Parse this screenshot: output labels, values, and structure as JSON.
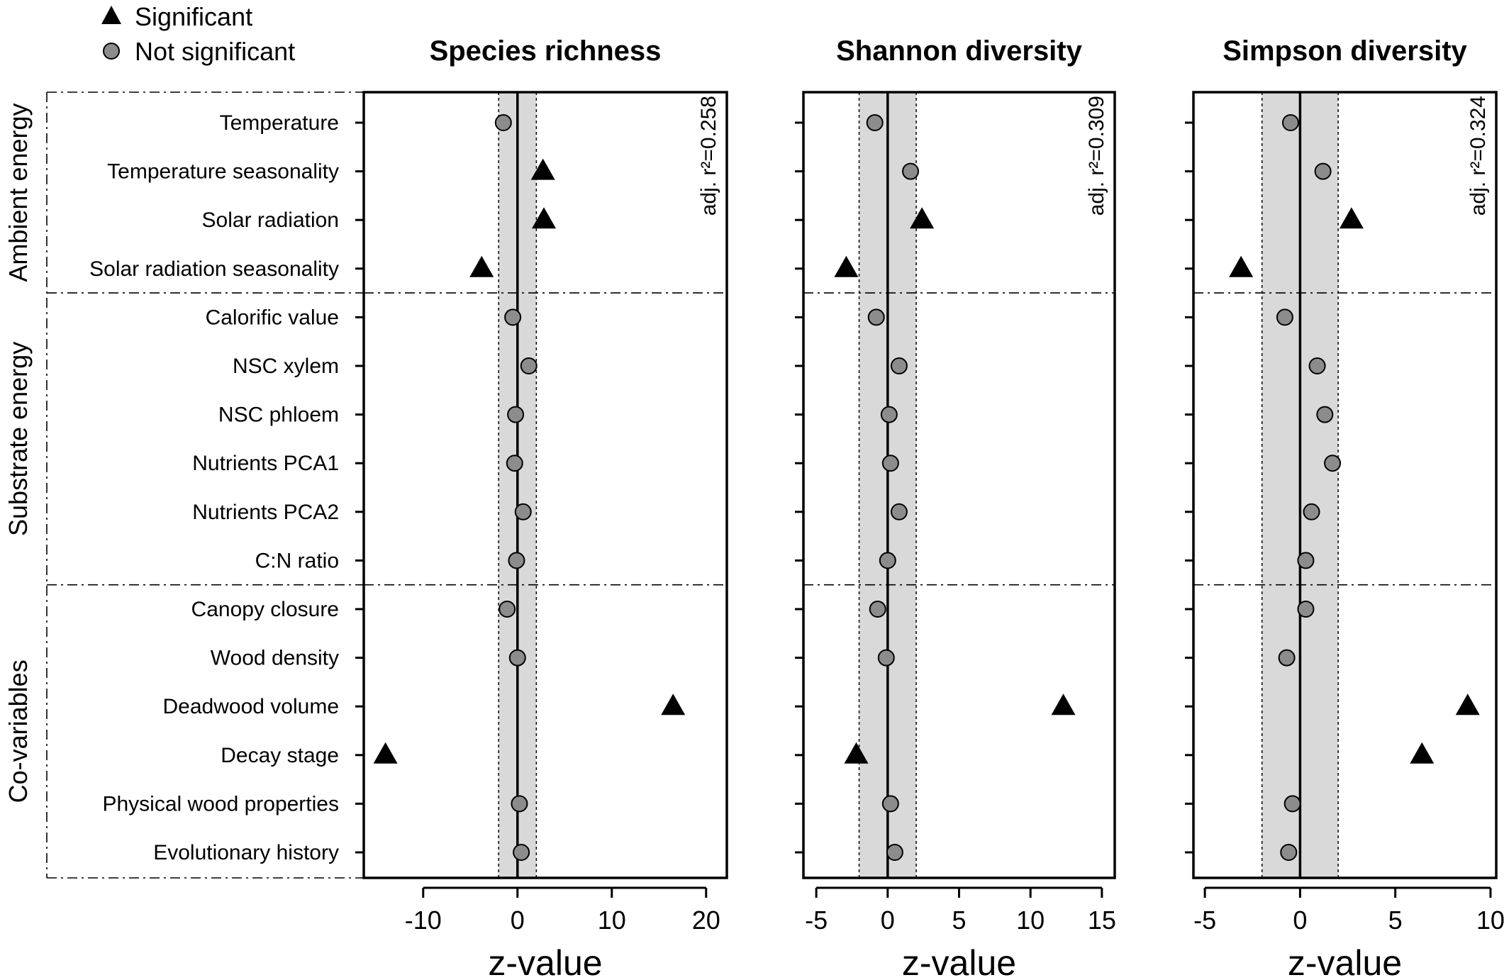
{
  "legend": {
    "significant": "Significant",
    "not_significant": "Not significant"
  },
  "colors": {
    "band": "#d9d9d9",
    "point_fill": "#8c8c8c",
    "marker": "#000000"
  },
  "groups": [
    {
      "label": "Ambient energy",
      "rows": [
        0,
        3
      ]
    },
    {
      "label": "Substrate energy",
      "rows": [
        4,
        9
      ]
    },
    {
      "label": "Co-variables",
      "rows": [
        10,
        15
      ]
    }
  ],
  "chart_data": [
    {
      "type": "scatter",
      "title": "Species richness",
      "xlabel": "z-value",
      "xlim": [
        -16.3,
        22.2
      ],
      "xticks": [
        -10,
        0,
        10,
        20
      ],
      "xtick_labels": [
        "-10",
        "0",
        "10",
        "20"
      ],
      "band": [
        -2,
        2
      ],
      "annotation": "adj. r²=0.258",
      "categories": [
        "Temperature",
        "Temperature seasonality",
        "Solar radiation",
        "Solar radiation seasonality",
        "Calorific value",
        "NSC xylem",
        "NSC phloem",
        "Nutrients PCA1",
        "Nutrients PCA2",
        "C:N ratio",
        "Canopy closure",
        "Wood density",
        "Deadwood volume",
        "Decay stage",
        "Physical wood properties",
        "Evolutionary history"
      ],
      "values": [
        -1.5,
        2.7,
        2.8,
        -3.8,
        -0.5,
        1.2,
        -0.2,
        -0.3,
        0.6,
        -0.1,
        -1.1,
        0.0,
        16.5,
        -14.0,
        0.2,
        0.4
      ],
      "significant": [
        false,
        true,
        true,
        true,
        false,
        false,
        false,
        false,
        false,
        false,
        false,
        false,
        true,
        true,
        false,
        false
      ]
    },
    {
      "type": "scatter",
      "title": "Shannon diversity",
      "xlabel": "z-value",
      "xlim": [
        -5.9,
        15.9
      ],
      "xticks": [
        -5,
        0,
        5,
        10,
        15
      ],
      "xtick_labels": [
        "-5",
        "0",
        "5",
        "10",
        "15"
      ],
      "band": [
        -2,
        2
      ],
      "annotation": "adj. r²=0.309",
      "categories": [
        "Temperature",
        "Temperature seasonality",
        "Solar radiation",
        "Solar radiation seasonality",
        "Calorific value",
        "NSC xylem",
        "NSC phloem",
        "Nutrients PCA1",
        "Nutrients PCA2",
        "C:N ratio",
        "Canopy closure",
        "Wood density",
        "Deadwood volume",
        "Decay stage",
        "Physical wood properties",
        "Evolutionary history"
      ],
      "values": [
        -0.9,
        1.6,
        2.4,
        -2.9,
        -0.8,
        0.8,
        0.1,
        0.2,
        0.8,
        0.0,
        -0.7,
        -0.1,
        12.3,
        -2.2,
        0.2,
        0.5
      ],
      "significant": [
        false,
        false,
        true,
        true,
        false,
        false,
        false,
        false,
        false,
        false,
        false,
        false,
        true,
        true,
        false,
        false
      ]
    },
    {
      "type": "scatter",
      "title": "Simpson diversity",
      "xlabel": "z-value",
      "xlim": [
        -5.6,
        10.3
      ],
      "xticks": [
        -5,
        0,
        5,
        10
      ],
      "xtick_labels": [
        "-5",
        "0",
        "5",
        "10"
      ],
      "band": [
        -2,
        2
      ],
      "annotation": "adj. r²=0.324",
      "categories": [
        "Temperature",
        "Temperature seasonality",
        "Solar radiation",
        "Solar radiation seasonality",
        "Calorific value",
        "NSC xylem",
        "NSC phloem",
        "Nutrients PCA1",
        "Nutrients PCA2",
        "C:N ratio",
        "Canopy closure",
        "Wood density",
        "Deadwood volume",
        "Decay stage",
        "Physical wood properties",
        "Evolutionary history"
      ],
      "values": [
        -0.5,
        1.2,
        2.7,
        -3.1,
        -0.8,
        0.9,
        1.3,
        1.7,
        0.6,
        0.3,
        0.3,
        -0.7,
        8.8,
        6.4,
        -0.4,
        -0.6
      ],
      "significant": [
        false,
        false,
        true,
        true,
        false,
        false,
        false,
        false,
        false,
        false,
        false,
        false,
        true,
        true,
        false,
        false
      ]
    }
  ]
}
